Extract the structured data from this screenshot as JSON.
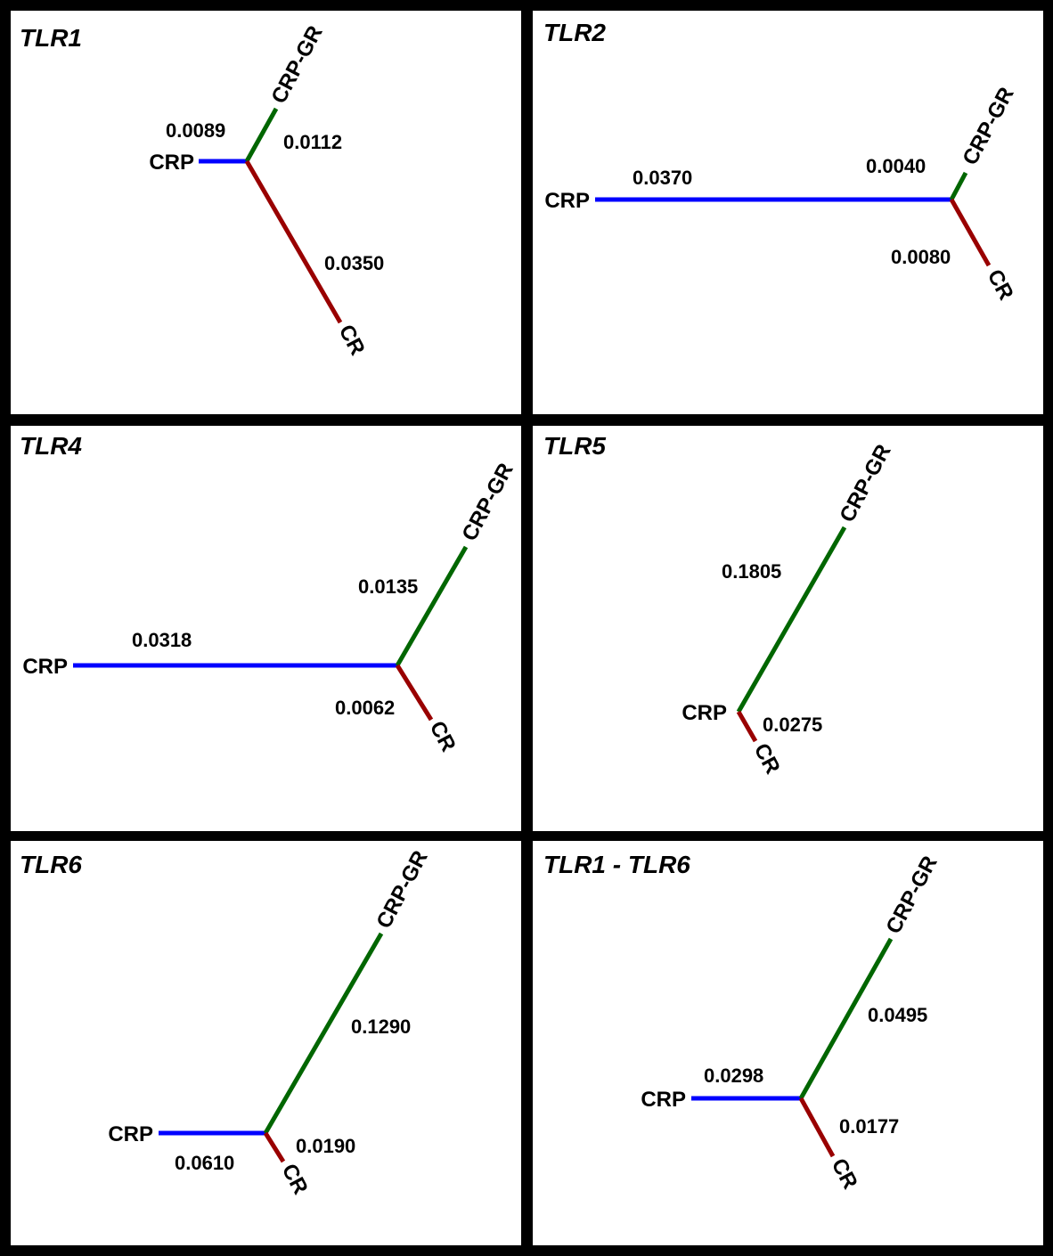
{
  "colors": {
    "CRP": "#0000ff",
    "CRP-GR": "#006600",
    "CR": "#990000"
  },
  "panels": [
    {
      "title": "TLR1",
      "branches": [
        {
          "taxon": "CRP",
          "length": "0.0089"
        },
        {
          "taxon": "CRP-GR",
          "length": "0.0112"
        },
        {
          "taxon": "CR",
          "length": "0.0350"
        }
      ]
    },
    {
      "title": "TLR2",
      "branches": [
        {
          "taxon": "CRP",
          "length": "0.0370"
        },
        {
          "taxon": "CRP-GR",
          "length": "0.0040"
        },
        {
          "taxon": "CR",
          "length": "0.0080"
        }
      ]
    },
    {
      "title": "TLR4",
      "branches": [
        {
          "taxon": "CRP",
          "length": "0.0318"
        },
        {
          "taxon": "CRP-GR",
          "length": "0.0135"
        },
        {
          "taxon": "CR",
          "length": "0.0062"
        }
      ]
    },
    {
      "title": "TLR5",
      "branches": [
        {
          "taxon": "CRP",
          "length": ""
        },
        {
          "taxon": "CRP-GR",
          "length": "0.1805"
        },
        {
          "taxon": "CR",
          "length": "0.0275"
        }
      ]
    },
    {
      "title": "TLR6",
      "branches": [
        {
          "taxon": "CRP",
          "length": "0.0610"
        },
        {
          "taxon": "CRP-GR",
          "length": "0.1290"
        },
        {
          "taxon": "CR",
          "length": "0.0190"
        }
      ]
    },
    {
      "title": "TLR1 - TLR6",
      "branches": [
        {
          "taxon": "CRP",
          "length": "0.0298"
        },
        {
          "taxon": "CRP-GR",
          "length": "0.0495"
        },
        {
          "taxon": "CR",
          "length": "0.0177"
        }
      ]
    }
  ]
}
